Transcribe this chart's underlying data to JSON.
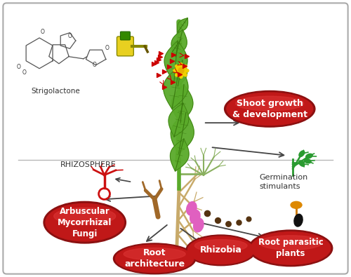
{
  "background_color": "#ffffff",
  "fig_width": 5.0,
  "fig_height": 3.95,
  "labels": {
    "strigolactone": "Strigolactone",
    "rhizosphere": "RHIZOSPHERE",
    "shoot_growth": "Shoot growth\n& development",
    "arbuscular": "Arbuscular\nMycorrhizal\nFungi",
    "root_architecture": "Root\narchitecture",
    "rhizobia": "Rhizobia",
    "root_parasitic": "Root parasitic\nplants",
    "germination": "Germination\nstimulants"
  },
  "stem_color": "#5aaa2a",
  "stem_dark": "#3a7a10",
  "leaf_color": "#5aaa2a",
  "leaf_dark": "#3a7a10",
  "root_color": "#c8aa6a",
  "root_dark": "#a08040",
  "ellipse_dark": "#a01010",
  "ellipse_light": "#d03030",
  "ellipse_highlight": "#e05050",
  "arrow_color": "#555555",
  "spray_red": "#cc0000",
  "fungi_red": "#cc1111",
  "green_plant": "#2a9a30"
}
